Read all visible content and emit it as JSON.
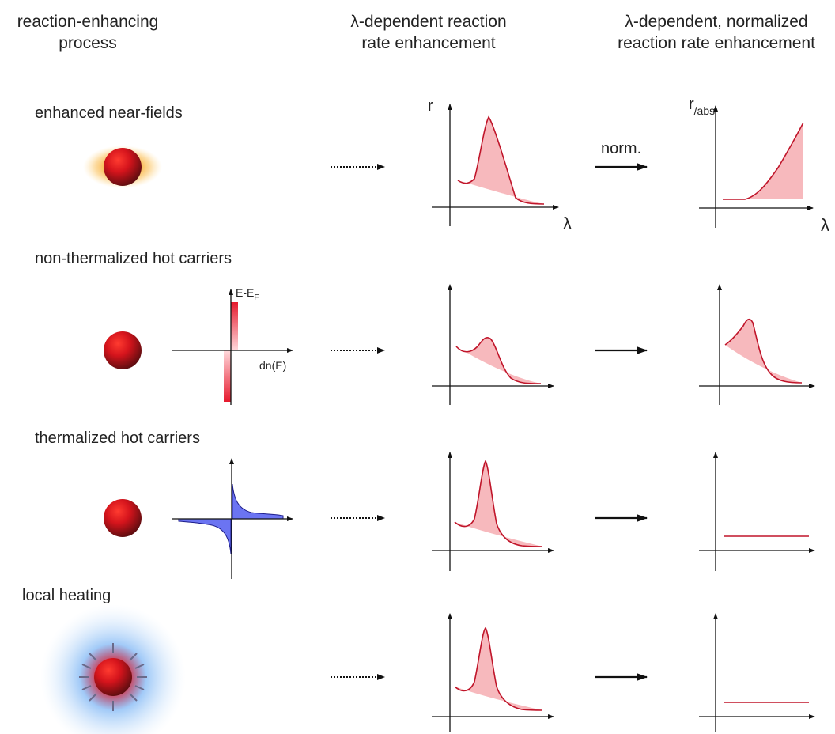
{
  "headers": {
    "process": [
      "reaction-enhancing",
      "process"
    ],
    "rate": [
      "λ-dependent reaction",
      "rate enhancement"
    ],
    "normalized": [
      "λ-dependent, normalized",
      "reaction rate enhancement"
    ]
  },
  "rows": [
    {
      "label": "enhanced near-fields"
    },
    {
      "label": "non-thermalized hot carriers"
    },
    {
      "label": "thermalized hot carriers"
    },
    {
      "label": "local heating"
    }
  ],
  "axis": {
    "r": "r",
    "r_abs_main": "r",
    "r_abs_sub": "/abs",
    "lambda": "λ"
  },
  "norm_label": "norm.",
  "distribution_axis": {
    "y_main": "E-E",
    "y_sub": "F",
    "x": "dn(E)"
  },
  "colors": {
    "curve": "#c0152a",
    "fill": "#f7b9bd",
    "particle": "#d1141c",
    "glow_orange": "#f7a31a",
    "glow_blue": "#3d8ff0",
    "distribution_blue": "#3c3ce0"
  }
}
